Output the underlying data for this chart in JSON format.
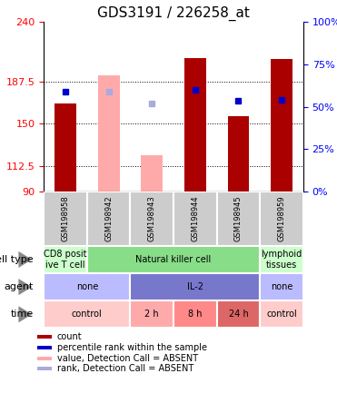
{
  "title": "GDS3191 / 226258_at",
  "samples": [
    "GSM198958",
    "GSM198942",
    "GSM198943",
    "GSM198944",
    "GSM198945",
    "GSM198959"
  ],
  "ymin": 90,
  "ymax": 240,
  "yticks_left": [
    90,
    112.5,
    150,
    187.5,
    240
  ],
  "bar_values": [
    168,
    193,
    122,
    208,
    157,
    207
  ],
  "bar_absent": [
    false,
    true,
    true,
    false,
    false,
    false
  ],
  "bar_colors_present": "#aa0000",
  "bar_colors_absent": "#ffaaaa",
  "dot_values": [
    178,
    178,
    168,
    180,
    170,
    171
  ],
  "dot_absent": [
    false,
    true,
    true,
    false,
    false,
    false
  ],
  "dot_color_present": "#0000cc",
  "dot_color_absent": "#aaaadd",
  "annotation_rows": [
    {
      "label": "cell type",
      "cells": [
        {
          "text": "CD8 posit\nive T cell",
          "colspan": 1,
          "color": "#ccffcc"
        },
        {
          "text": "Natural killer cell",
          "colspan": 4,
          "color": "#88dd88"
        },
        {
          "text": "lymphoid\ntissues",
          "colspan": 1,
          "color": "#ccffcc"
        }
      ]
    },
    {
      "label": "agent",
      "cells": [
        {
          "text": "none",
          "colspan": 2,
          "color": "#bbbbff"
        },
        {
          "text": "IL-2",
          "colspan": 3,
          "color": "#7777cc"
        },
        {
          "text": "none",
          "colspan": 1,
          "color": "#bbbbff"
        }
      ]
    },
    {
      "label": "time",
      "cells": [
        {
          "text": "control",
          "colspan": 2,
          "color": "#ffcccc"
        },
        {
          "text": "2 h",
          "colspan": 1,
          "color": "#ffaaaa"
        },
        {
          "text": "8 h",
          "colspan": 1,
          "color": "#ff8888"
        },
        {
          "text": "24 h",
          "colspan": 1,
          "color": "#dd6666"
        },
        {
          "text": "control",
          "colspan": 1,
          "color": "#ffcccc"
        }
      ]
    }
  ],
  "legend_items": [
    {
      "color": "#aa0000",
      "label": "count"
    },
    {
      "color": "#0000cc",
      "label": "percentile rank within the sample"
    },
    {
      "color": "#ffaaaa",
      "label": "value, Detection Call = ABSENT"
    },
    {
      "color": "#aaaadd",
      "label": "rank, Detection Call = ABSENT"
    }
  ],
  "sample_label_bg": "#cccccc",
  "gridline_y": [
    112.5,
    150,
    187.5
  ]
}
